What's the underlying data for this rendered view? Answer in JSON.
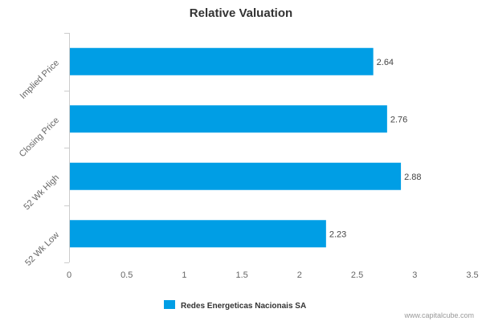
{
  "chart_data": {
    "type": "bar",
    "orientation": "horizontal",
    "title": "Relative Valuation",
    "categories": [
      "Implied Price",
      "Closing Price",
      "52 Wk High",
      "52 Wk Low"
    ],
    "series": [
      {
        "name": "Redes Energeticas Nacionais SA",
        "values": [
          2.64,
          2.76,
          2.88,
          2.23
        ],
        "data_labels": [
          "2.64",
          "2.76",
          "2.88",
          "2.23"
        ],
        "color": "#009ee5"
      }
    ],
    "xlim": [
      0,
      3.5
    ],
    "x_ticks": [
      "0",
      "0.5",
      "1",
      "1.5",
      "2",
      "2.5",
      "3",
      "3.5"
    ],
    "x_tick_values": [
      0,
      0.5,
      1,
      1.5,
      2,
      2.5,
      3,
      3.5
    ],
    "grid": false,
    "legend_placement": "bottom-center"
  },
  "credit": "www.capitalcube.com"
}
